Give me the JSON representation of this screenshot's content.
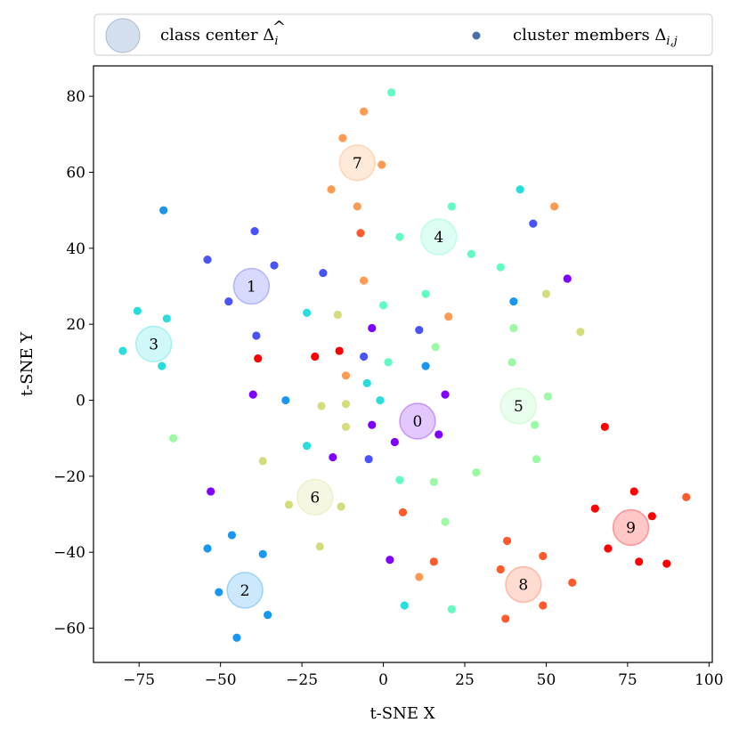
{
  "chart_data": {
    "type": "scatter",
    "xlabel": "t-SNE X",
    "ylabel": "t-SNE Y",
    "xlim": [
      -89,
      101
    ],
    "ylim": [
      -69,
      88
    ],
    "xticks": [
      {
        "value": -75,
        "label": "−75"
      },
      {
        "value": -50,
        "label": "−50"
      },
      {
        "value": -25,
        "label": "−25"
      },
      {
        "value": 0,
        "label": "0"
      },
      {
        "value": 25,
        "label": "25"
      },
      {
        "value": 50,
        "label": "50"
      },
      {
        "value": 75,
        "label": "75"
      },
      {
        "value": 100,
        "label": "100"
      }
    ],
    "yticks": [
      {
        "value": -60,
        "label": "−60"
      },
      {
        "value": -40,
        "label": "−40"
      },
      {
        "value": -20,
        "label": "−20"
      },
      {
        "value": 0,
        "label": "0"
      },
      {
        "value": 20,
        "label": "20"
      },
      {
        "value": 40,
        "label": "40"
      },
      {
        "value": 60,
        "label": "60"
      },
      {
        "value": 80,
        "label": "80"
      }
    ],
    "grid": false,
    "legend": {
      "placement": "top, outside plot",
      "entries": [
        {
          "main": "class center Δ",
          "hat": "^",
          "sub": "i"
        },
        {
          "main": "cluster members Δ",
          "sub": "i,j"
        }
      ]
    },
    "class_colors": [
      "#7f00ff",
      "#4a53f8",
      "#1996f0",
      "#2adddd",
      "#62fcc3",
      "#9cf9a4",
      "#d4dc7e",
      "#ff9a52",
      "#ff5a2c",
      "#ff0000"
    ],
    "class_centers": [
      {
        "label": "0",
        "class": 0,
        "x": 10.5,
        "y": -5.5
      },
      {
        "label": "1",
        "class": 1,
        "x": -40.5,
        "y": 30
      },
      {
        "label": "2",
        "class": 2,
        "x": -42.5,
        "y": -50
      },
      {
        "label": "3",
        "class": 3,
        "x": -70.5,
        "y": 14.8
      },
      {
        "label": "4",
        "class": 4,
        "x": 17,
        "y": 43
      },
      {
        "label": "5",
        "class": 5,
        "x": 41.5,
        "y": -1.5
      },
      {
        "label": "6",
        "class": 6,
        "x": -21,
        "y": -25.5
      },
      {
        "label": "7",
        "class": 7,
        "x": -8,
        "y": 62.5
      },
      {
        "label": "8",
        "class": 8,
        "x": 43,
        "y": -48.5
      },
      {
        "label": "9",
        "class": 9,
        "x": 76,
        "y": -33.5
      }
    ],
    "members": [
      {
        "class": 0,
        "x": 56.5,
        "y": 32
      },
      {
        "class": 0,
        "x": -40,
        "y": 1.5
      },
      {
        "class": 0,
        "x": -3.5,
        "y": -6.5
      },
      {
        "class": 0,
        "x": 3.5,
        "y": -11
      },
      {
        "class": 0,
        "x": -53,
        "y": -24
      },
      {
        "class": 0,
        "x": -15.5,
        "y": -15
      },
      {
        "class": 0,
        "x": 2,
        "y": -42
      },
      {
        "class": 0,
        "x": 19,
        "y": 1.5
      },
      {
        "class": 0,
        "x": 17,
        "y": -9
      },
      {
        "class": 0,
        "x": -3.5,
        "y": 19
      },
      {
        "class": 1,
        "x": -39.5,
        "y": 44.5
      },
      {
        "class": 1,
        "x": -54,
        "y": 37
      },
      {
        "class": 1,
        "x": -33.5,
        "y": 35.5
      },
      {
        "class": 1,
        "x": -18.5,
        "y": 33.5
      },
      {
        "class": 1,
        "x": -47.5,
        "y": 26
      },
      {
        "class": 1,
        "x": -39,
        "y": 17
      },
      {
        "class": 1,
        "x": -6,
        "y": 11.5
      },
      {
        "class": 1,
        "x": 11,
        "y": 18.5
      },
      {
        "class": 1,
        "x": 46,
        "y": 46.5
      },
      {
        "class": 1,
        "x": -4.5,
        "y": -15.5
      },
      {
        "class": 2,
        "x": -67.5,
        "y": 50
      },
      {
        "class": 2,
        "x": -30,
        "y": 0
      },
      {
        "class": 2,
        "x": -46.5,
        "y": -35.5
      },
      {
        "class": 2,
        "x": -54,
        "y": -39
      },
      {
        "class": 2,
        "x": -37,
        "y": -40.5
      },
      {
        "class": 2,
        "x": -50.5,
        "y": -50.5
      },
      {
        "class": 2,
        "x": -35.5,
        "y": -56.5
      },
      {
        "class": 2,
        "x": -45,
        "y": -62.5
      },
      {
        "class": 2,
        "x": 13,
        "y": 9
      },
      {
        "class": 2,
        "x": 40,
        "y": 26
      },
      {
        "class": 3,
        "x": -75.5,
        "y": 23.5
      },
      {
        "class": 3,
        "x": -66.5,
        "y": 21.5
      },
      {
        "class": 3,
        "x": -80,
        "y": 13
      },
      {
        "class": 3,
        "x": -68,
        "y": 9
      },
      {
        "class": 3,
        "x": -23.5,
        "y": 23
      },
      {
        "class": 3,
        "x": -5,
        "y": 4.5
      },
      {
        "class": 3,
        "x": -1,
        "y": 0
      },
      {
        "class": 3,
        "x": -23.5,
        "y": -12
      },
      {
        "class": 3,
        "x": 6.5,
        "y": -54
      },
      {
        "class": 3,
        "x": 42,
        "y": 55.5
      },
      {
        "class": 4,
        "x": 2.5,
        "y": 81
      },
      {
        "class": 4,
        "x": 21,
        "y": 51
      },
      {
        "class": 4,
        "x": 5,
        "y": 43
      },
      {
        "class": 4,
        "x": 27,
        "y": 38.5
      },
      {
        "class": 4,
        "x": 36,
        "y": 35
      },
      {
        "class": 4,
        "x": 13,
        "y": 28
      },
      {
        "class": 4,
        "x": 0,
        "y": 25
      },
      {
        "class": 4,
        "x": 1.5,
        "y": 10
      },
      {
        "class": 4,
        "x": 5,
        "y": -21
      },
      {
        "class": 4,
        "x": 21,
        "y": -55
      },
      {
        "class": 5,
        "x": -64.5,
        "y": -10
      },
      {
        "class": 5,
        "x": 16,
        "y": 14
      },
      {
        "class": 5,
        "x": 40,
        "y": 19
      },
      {
        "class": 5,
        "x": 39.5,
        "y": 10
      },
      {
        "class": 5,
        "x": 50.5,
        "y": 1
      },
      {
        "class": 5,
        "x": 46.5,
        "y": -6.5
      },
      {
        "class": 5,
        "x": 47,
        "y": -15.5
      },
      {
        "class": 5,
        "x": 28.5,
        "y": -19
      },
      {
        "class": 5,
        "x": 15.5,
        "y": -21.5
      },
      {
        "class": 5,
        "x": 19,
        "y": -32
      },
      {
        "class": 6,
        "x": -14,
        "y": 22.5
      },
      {
        "class": 6,
        "x": -19,
        "y": -1.5
      },
      {
        "class": 6,
        "x": -11.5,
        "y": -1
      },
      {
        "class": 6,
        "x": -11.5,
        "y": -7
      },
      {
        "class": 6,
        "x": -37,
        "y": -16
      },
      {
        "class": 6,
        "x": -29,
        "y": -27.5
      },
      {
        "class": 6,
        "x": -13,
        "y": -28
      },
      {
        "class": 6,
        "x": -19.5,
        "y": -38.5
      },
      {
        "class": 6,
        "x": 50,
        "y": 28
      },
      {
        "class": 6,
        "x": 60.5,
        "y": 18
      },
      {
        "class": 7,
        "x": -6,
        "y": 76
      },
      {
        "class": 7,
        "x": -12.5,
        "y": 69
      },
      {
        "class": 7,
        "x": -0.5,
        "y": 62
      },
      {
        "class": 7,
        "x": -16,
        "y": 55.5
      },
      {
        "class": 7,
        "x": -8,
        "y": 51
      },
      {
        "class": 7,
        "x": -6,
        "y": 31.5
      },
      {
        "class": 7,
        "x": -11.5,
        "y": 6.5
      },
      {
        "class": 7,
        "x": 20,
        "y": 22
      },
      {
        "class": 7,
        "x": 52.5,
        "y": 51
      },
      {
        "class": 7,
        "x": 11,
        "y": -46.5
      },
      {
        "class": 8,
        "x": -7,
        "y": 44
      },
      {
        "class": 8,
        "x": 6,
        "y": -29.5
      },
      {
        "class": 8,
        "x": 15.5,
        "y": -42.5
      },
      {
        "class": 8,
        "x": 38,
        "y": -37
      },
      {
        "class": 8,
        "x": 49,
        "y": -41
      },
      {
        "class": 8,
        "x": 36,
        "y": -44.5
      },
      {
        "class": 8,
        "x": 58,
        "y": -48
      },
      {
        "class": 8,
        "x": 49,
        "y": -54
      },
      {
        "class": 8,
        "x": 37.5,
        "y": -57.5
      },
      {
        "class": 8,
        "x": 93,
        "y": -25.5
      },
      {
        "class": 9,
        "x": -38.5,
        "y": 11
      },
      {
        "class": 9,
        "x": -21,
        "y": 11.5
      },
      {
        "class": 9,
        "x": -13.5,
        "y": 13
      },
      {
        "class": 9,
        "x": 68,
        "y": -7
      },
      {
        "class": 9,
        "x": 77,
        "y": -24
      },
      {
        "class": 9,
        "x": 65,
        "y": -28.5
      },
      {
        "class": 9,
        "x": 82.5,
        "y": -30.5
      },
      {
        "class": 9,
        "x": 69,
        "y": -39
      },
      {
        "class": 9,
        "x": 78.5,
        "y": -42.5
      },
      {
        "class": 9,
        "x": 87,
        "y": -43
      }
    ]
  }
}
